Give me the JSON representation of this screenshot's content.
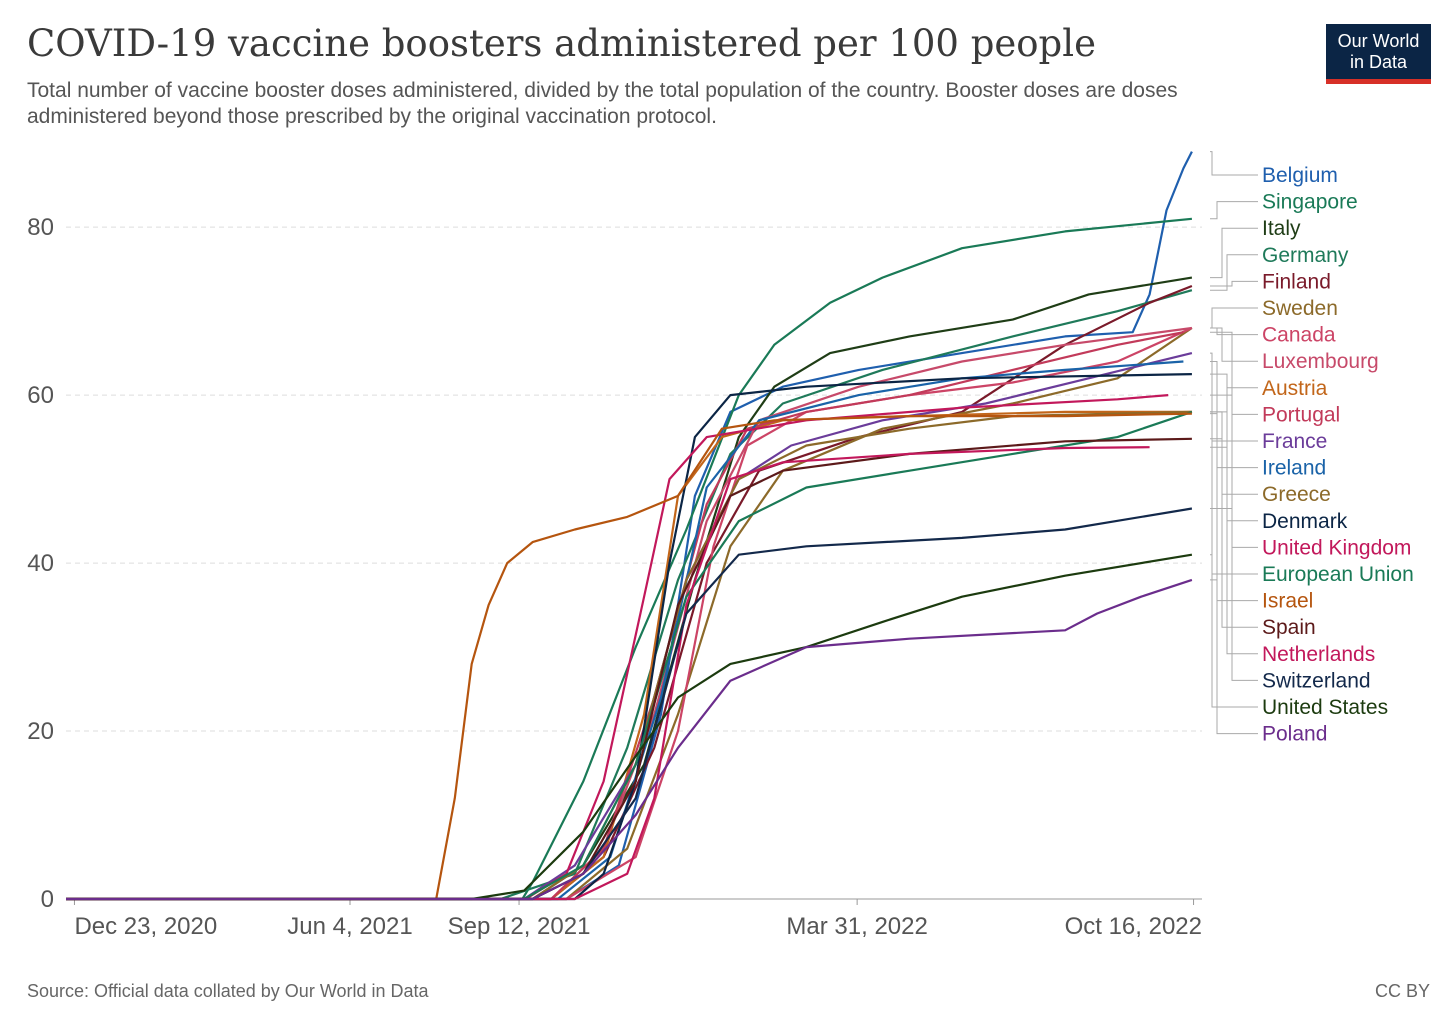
{
  "title": "COVID-19 vaccine boosters administered per 100 people",
  "subtitle": "Total number of vaccine booster doses administered, divided by the total population of the country. Booster doses are doses administered beyond those prescribed by the original vaccination protocol.",
  "logo": {
    "line1": "Our World",
    "line2": "in Data",
    "colors": {
      "background": "#0b2545",
      "accent": "#d73027"
    }
  },
  "footer": {
    "source": "Source: Official data collated by Our World in Data",
    "license": "CC BY"
  },
  "chart_data": {
    "type": "line",
    "x_axis_type": "date",
    "xlim": [
      "2020-12-18",
      "2022-10-21"
    ],
    "ylim": [
      0,
      88
    ],
    "grid": "horizontal-dashed",
    "legend": "right",
    "y_ticks": [
      0,
      20,
      40,
      60,
      80
    ],
    "x_ticks": [
      {
        "date": "2020-12-23",
        "label": "Dec 23, 2020"
      },
      {
        "date": "2021-06-04",
        "label": "Jun 4, 2021"
      },
      {
        "date": "2021-09-12",
        "label": "Sep 12, 2021"
      },
      {
        "date": "2022-03-31",
        "label": "Mar 31, 2022"
      },
      {
        "date": "2022-10-16",
        "label": "Oct 16, 2022"
      }
    ],
    "series": [
      {
        "name": "Belgium",
        "color": "#1f5fae",
        "points": [
          [
            "2021-10-10",
            0
          ],
          [
            "2021-11-10",
            4
          ],
          [
            "2021-12-05",
            22
          ],
          [
            "2021-12-25",
            48
          ],
          [
            "2022-01-15",
            58
          ],
          [
            "2022-02-15",
            61
          ],
          [
            "2022-04-01",
            63
          ],
          [
            "2022-06-01",
            65
          ],
          [
            "2022-08-01",
            67
          ],
          [
            "2022-09-10",
            67.5
          ],
          [
            "2022-09-20",
            72
          ],
          [
            "2022-09-30",
            82
          ],
          [
            "2022-10-10",
            87
          ],
          [
            "2022-10-15",
            89
          ]
        ]
      },
      {
        "name": "Singapore",
        "color": "#1a7a57",
        "points": [
          [
            "2021-09-14",
            0
          ],
          [
            "2021-09-20",
            2
          ],
          [
            "2021-10-20",
            14
          ],
          [
            "2021-11-20",
            30
          ],
          [
            "2021-12-20",
            44
          ],
          [
            "2022-01-20",
            60
          ],
          [
            "2022-02-10",
            66
          ],
          [
            "2022-03-15",
            71
          ],
          [
            "2022-04-15",
            74
          ],
          [
            "2022-06-01",
            77.5
          ],
          [
            "2022-08-01",
            79.5
          ],
          [
            "2022-10-15",
            81
          ]
        ]
      },
      {
        "name": "Italy",
        "color": "#1f3d16",
        "points": [
          [
            "2021-09-20",
            0
          ],
          [
            "2021-10-20",
            4
          ],
          [
            "2021-11-25",
            16
          ],
          [
            "2021-12-25",
            38
          ],
          [
            "2022-01-20",
            55
          ],
          [
            "2022-02-10",
            61
          ],
          [
            "2022-03-15",
            65
          ],
          [
            "2022-05-01",
            67
          ],
          [
            "2022-07-01",
            69
          ],
          [
            "2022-08-15",
            72
          ],
          [
            "2022-10-15",
            74
          ]
        ]
      },
      {
        "name": "Germany",
        "color": "#1f7a5a",
        "points": [
          [
            "2021-09-01",
            0
          ],
          [
            "2021-10-15",
            3
          ],
          [
            "2021-11-15",
            18
          ],
          [
            "2021-12-15",
            38
          ],
          [
            "2022-01-15",
            53
          ],
          [
            "2022-02-15",
            59
          ],
          [
            "2022-04-15",
            63
          ],
          [
            "2022-07-01",
            67
          ],
          [
            "2022-09-01",
            70
          ],
          [
            "2022-10-15",
            72.5
          ]
        ]
      },
      {
        "name": "Finland",
        "color": "#7a1a2a",
        "points": [
          [
            "2021-10-01",
            0
          ],
          [
            "2021-11-01",
            5
          ],
          [
            "2021-12-01",
            18
          ],
          [
            "2022-01-01",
            40
          ],
          [
            "2022-02-01",
            51
          ],
          [
            "2022-04-01",
            55
          ],
          [
            "2022-06-01",
            58
          ],
          [
            "2022-08-01",
            66
          ],
          [
            "2022-09-20",
            71
          ],
          [
            "2022-10-15",
            73
          ]
        ]
      },
      {
        "name": "Sweden",
        "color": "#8c6a2a",
        "points": [
          [
            "2021-10-10",
            0
          ],
          [
            "2021-11-15",
            6
          ],
          [
            "2021-12-15",
            22
          ],
          [
            "2022-01-15",
            42
          ],
          [
            "2022-02-15",
            51
          ],
          [
            "2022-04-15",
            56
          ],
          [
            "2022-07-01",
            59
          ],
          [
            "2022-09-01",
            62
          ],
          [
            "2022-10-15",
            68
          ]
        ]
      },
      {
        "name": "Canada",
        "color": "#cc4466",
        "points": [
          [
            "2021-10-10",
            0
          ],
          [
            "2021-11-20",
            5
          ],
          [
            "2021-12-15",
            20
          ],
          [
            "2022-01-05",
            42
          ],
          [
            "2022-01-25",
            54
          ],
          [
            "2022-03-01",
            58
          ],
          [
            "2022-05-01",
            60
          ],
          [
            "2022-07-01",
            61.5
          ],
          [
            "2022-09-01",
            64
          ],
          [
            "2022-10-15",
            68
          ]
        ]
      },
      {
        "name": "Luxembourg",
        "color": "#c74a6a",
        "points": [
          [
            "2021-10-01",
            0
          ],
          [
            "2021-11-01",
            6
          ],
          [
            "2021-12-01",
            22
          ],
          [
            "2022-01-01",
            45
          ],
          [
            "2022-02-01",
            57
          ],
          [
            "2022-04-01",
            61
          ],
          [
            "2022-06-01",
            64
          ],
          [
            "2022-08-01",
            66
          ],
          [
            "2022-10-15",
            68
          ]
        ]
      },
      {
        "name": "Austria",
        "color": "#c2661a",
        "points": [
          [
            "2021-10-01",
            0
          ],
          [
            "2021-11-01",
            5
          ],
          [
            "2021-11-25",
            22
          ],
          [
            "2021-12-15",
            48
          ],
          [
            "2022-01-10",
            55
          ],
          [
            "2022-02-15",
            57
          ],
          [
            "2022-05-01",
            57.5
          ],
          [
            "2022-08-01",
            58
          ],
          [
            "2022-10-15",
            58
          ]
        ]
      },
      {
        "name": "Portugal",
        "color": "#c23a5a",
        "points": [
          [
            "2021-10-01",
            0
          ],
          [
            "2021-11-01",
            6
          ],
          [
            "2021-12-01",
            24
          ],
          [
            "2022-01-01",
            47
          ],
          [
            "2022-01-25",
            56
          ],
          [
            "2022-03-01",
            58
          ],
          [
            "2022-05-01",
            60
          ],
          [
            "2022-07-01",
            63
          ],
          [
            "2022-09-01",
            66
          ],
          [
            "2022-10-10",
            67.5
          ]
        ]
      },
      {
        "name": "France",
        "color": "#6b3c9a",
        "points": [
          [
            "2021-09-15",
            0
          ],
          [
            "2021-10-15",
            4
          ],
          [
            "2021-11-20",
            16
          ],
          [
            "2021-12-20",
            38
          ],
          [
            "2022-01-20",
            50
          ],
          [
            "2022-02-20",
            54
          ],
          [
            "2022-04-15",
            57
          ],
          [
            "2022-06-15",
            59
          ],
          [
            "2022-08-15",
            62
          ],
          [
            "2022-10-15",
            65
          ]
        ]
      },
      {
        "name": "Ireland",
        "color": "#1a63a8",
        "points": [
          [
            "2021-10-05",
            0
          ],
          [
            "2021-11-05",
            5
          ],
          [
            "2021-12-05",
            24
          ],
          [
            "2022-01-01",
            49
          ],
          [
            "2022-02-01",
            57
          ],
          [
            "2022-04-01",
            60
          ],
          [
            "2022-06-01",
            62
          ],
          [
            "2022-08-01",
            63
          ],
          [
            "2022-10-10",
            64
          ]
        ]
      },
      {
        "name": "Greece",
        "color": "#8c6a2a",
        "points": [
          [
            "2021-09-20",
            0
          ],
          [
            "2021-10-20",
            4
          ],
          [
            "2021-11-20",
            16
          ],
          [
            "2021-12-20",
            38
          ],
          [
            "2022-01-20",
            50
          ],
          [
            "2022-03-01",
            54
          ],
          [
            "2022-05-01",
            56
          ],
          [
            "2022-07-01",
            57.5
          ],
          [
            "2022-10-15",
            58
          ]
        ]
      },
      {
        "name": "Denmark",
        "color": "#0b2545",
        "points": [
          [
            "2021-10-15",
            0
          ],
          [
            "2021-11-01",
            3
          ],
          [
            "2021-11-20",
            14
          ],
          [
            "2021-12-10",
            40
          ],
          [
            "2021-12-25",
            55
          ],
          [
            "2022-01-15",
            60
          ],
          [
            "2022-03-01",
            61
          ],
          [
            "2022-06-01",
            62
          ],
          [
            "2022-10-15",
            62.5
          ]
        ]
      },
      {
        "name": "United Kingdom",
        "color": "#c2185b",
        "points": [
          [
            "2021-09-16",
            0
          ],
          [
            "2021-10-10",
            3
          ],
          [
            "2021-11-01",
            14
          ],
          [
            "2021-11-25",
            36
          ],
          [
            "2021-12-10",
            50
          ],
          [
            "2022-01-01",
            55
          ],
          [
            "2022-03-01",
            57
          ],
          [
            "2022-06-01",
            58.5
          ],
          [
            "2022-09-01",
            59.5
          ],
          [
            "2022-10-01",
            60
          ]
        ]
      },
      {
        "name": "European Union",
        "color": "#1a7a57",
        "points": [
          [
            "2021-09-15",
            0
          ],
          [
            "2021-10-20",
            4
          ],
          [
            "2021-11-20",
            16
          ],
          [
            "2021-12-20",
            36
          ],
          [
            "2022-01-20",
            45
          ],
          [
            "2022-03-01",
            49
          ],
          [
            "2022-05-01",
            51
          ],
          [
            "2022-07-01",
            53
          ],
          [
            "2022-09-01",
            55
          ],
          [
            "2022-10-15",
            58
          ]
        ]
      },
      {
        "name": "Israel",
        "color": "#b5550f",
        "points": [
          [
            "2021-07-25",
            0
          ],
          [
            "2021-08-05",
            12
          ],
          [
            "2021-08-15",
            28
          ],
          [
            "2021-08-25",
            35
          ],
          [
            "2021-09-05",
            40
          ],
          [
            "2021-09-20",
            42.5
          ],
          [
            "2021-10-15",
            44
          ],
          [
            "2021-11-15",
            45.5
          ],
          [
            "2021-12-15",
            48
          ],
          [
            "2022-01-10",
            56
          ],
          [
            "2022-02-10",
            57
          ],
          [
            "2022-05-01",
            57.5
          ],
          [
            "2022-08-01",
            57.5
          ],
          [
            "2022-10-15",
            57.8
          ]
        ]
      },
      {
        "name": "Spain",
        "color": "#5c1a1a",
        "points": [
          [
            "2021-09-20",
            0
          ],
          [
            "2021-10-20",
            3
          ],
          [
            "2021-11-20",
            14
          ],
          [
            "2021-12-15",
            35
          ],
          [
            "2022-01-15",
            48
          ],
          [
            "2022-02-15",
            51
          ],
          [
            "2022-05-01",
            53
          ],
          [
            "2022-08-01",
            54.5
          ],
          [
            "2022-10-15",
            54.8
          ]
        ]
      },
      {
        "name": "Netherlands",
        "color": "#c2185b",
        "points": [
          [
            "2021-10-15",
            0
          ],
          [
            "2021-11-15",
            3
          ],
          [
            "2021-12-01",
            12
          ],
          [
            "2021-12-20",
            35
          ],
          [
            "2022-01-15",
            50
          ],
          [
            "2022-02-15",
            52
          ],
          [
            "2022-05-01",
            53
          ],
          [
            "2022-08-01",
            53.7
          ],
          [
            "2022-09-20",
            53.8
          ]
        ]
      },
      {
        "name": "Switzerland",
        "color": "#13294b",
        "points": [
          [
            "2021-09-20",
            0
          ],
          [
            "2021-10-20",
            3
          ],
          [
            "2021-11-20",
            12
          ],
          [
            "2021-12-20",
            34
          ],
          [
            "2022-01-20",
            41
          ],
          [
            "2022-03-01",
            42
          ],
          [
            "2022-06-01",
            43
          ],
          [
            "2022-08-01",
            44
          ],
          [
            "2022-10-15",
            46.5
          ]
        ]
      },
      {
        "name": "United States",
        "color": "#1c3b0f",
        "points": [
          [
            "2021-08-15",
            0
          ],
          [
            "2021-09-15",
            1
          ],
          [
            "2021-10-20",
            8
          ],
          [
            "2021-11-20",
            17
          ],
          [
            "2021-12-15",
            24
          ],
          [
            "2022-01-15",
            28
          ],
          [
            "2022-03-01",
            30
          ],
          [
            "2022-04-15",
            33
          ],
          [
            "2022-06-01",
            36
          ],
          [
            "2022-08-01",
            38.5
          ],
          [
            "2022-10-15",
            41
          ]
        ]
      },
      {
        "name": "Poland",
        "color": "#6b2d8c",
        "points": [
          [
            "2021-09-20",
            0
          ],
          [
            "2021-10-20",
            3
          ],
          [
            "2021-11-20",
            10
          ],
          [
            "2021-12-15",
            18
          ],
          [
            "2022-01-15",
            26
          ],
          [
            "2022-03-01",
            30
          ],
          [
            "2022-05-01",
            31
          ],
          [
            "2022-08-01",
            32
          ],
          [
            "2022-08-20",
            34
          ],
          [
            "2022-09-15",
            36
          ],
          [
            "2022-10-15",
            38
          ]
        ]
      }
    ]
  }
}
